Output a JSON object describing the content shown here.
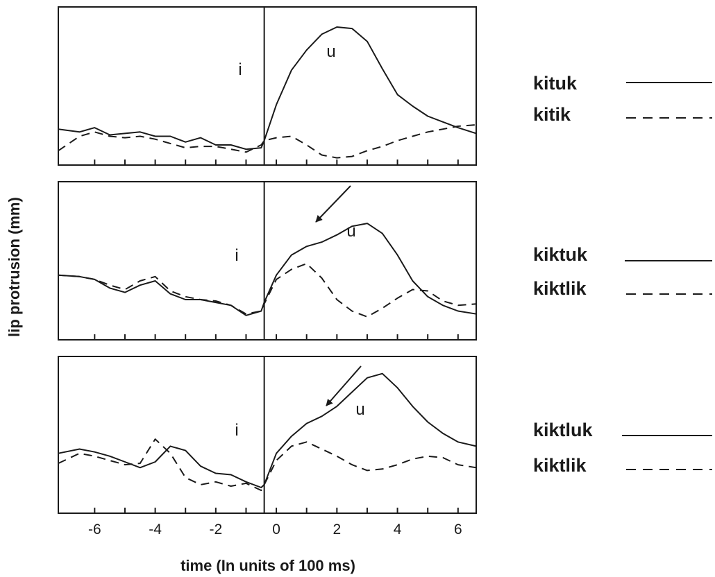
{
  "chart_data": {
    "type": "line",
    "xlabel": "time  (In units of 100 ms)",
    "ylabel": "lip protrusion (mm)",
    "xlim": [
      -7.2,
      6.6
    ],
    "x_ticks": [
      -6,
      -4,
      -2,
      0,
      2,
      4,
      6
    ],
    "x_tick_labels": [
      "-6",
      "-4",
      "-2",
      "0",
      "2",
      "4",
      "6"
    ],
    "x_minor_ticks": [
      -5,
      -3,
      -1,
      1,
      3,
      5
    ],
    "vertical_line_x": -0.4,
    "grid": false,
    "legend_placement": "right of each panel",
    "line_color": "#1a1a1a",
    "panels": [
      {
        "annotations": [
          "i",
          "u"
        ],
        "arrow": false,
        "series": [
          {
            "name": "kituk",
            "style": "solid",
            "x": [
              -7.2,
              -6.5,
              -6,
              -5.5,
              -5,
              -4.5,
              -4,
              -3.5,
              -3,
              -2.5,
              -2,
              -1.5,
              -1,
              -0.5,
              -0.4,
              0,
              0.5,
              1,
              1.5,
              2,
              2.5,
              3,
              3.5,
              4,
              4.5,
              5,
              5.5,
              6,
              6.6
            ],
            "y": [
              2.5,
              2.3,
              2.6,
              2.1,
              2.2,
              2.3,
              2.0,
              2.0,
              1.6,
              1.9,
              1.4,
              1.4,
              1.1,
              1.2,
              1.7,
              4.2,
              6.6,
              8.0,
              9.1,
              9.6,
              9.5,
              8.6,
              6.7,
              4.9,
              4.1,
              3.4,
              3.0,
              2.6,
              2.2
            ]
          },
          {
            "name": "kitik",
            "style": "dashed",
            "x": [
              -7.2,
              -6.5,
              -6,
              -5.5,
              -5,
              -4.5,
              -4,
              -3.5,
              -3,
              -2.5,
              -2,
              -1.5,
              -1,
              -0.5,
              -0.4,
              0,
              0.5,
              1,
              1.5,
              2,
              2.5,
              3,
              3.5,
              4,
              4.5,
              5,
              5.5,
              6,
              6.6
            ],
            "y": [
              1.0,
              2.0,
              2.3,
              2.0,
              1.9,
              2.0,
              1.8,
              1.5,
              1.2,
              1.3,
              1.3,
              1.1,
              0.9,
              1.4,
              1.7,
              1.9,
              2.0,
              1.4,
              0.7,
              0.5,
              0.6,
              1.0,
              1.3,
              1.7,
              2.0,
              2.3,
              2.5,
              2.7,
              2.8
            ]
          }
        ]
      },
      {
        "annotations": [
          "i",
          "u"
        ],
        "arrow": true,
        "series": [
          {
            "name": "kiktuk",
            "style": "solid",
            "x": [
              -7.2,
              -6.5,
              -6,
              -5.5,
              -5,
              -4.5,
              -4,
              -3.5,
              -3,
              -2.5,
              -2,
              -1.5,
              -1,
              -0.5,
              -0.4,
              0,
              0.5,
              1,
              1.5,
              2,
              2.5,
              3,
              3.5,
              4,
              4.5,
              5,
              5.5,
              6,
              6.6
            ],
            "y": [
              4.5,
              4.4,
              4.2,
              3.6,
              3.3,
              3.8,
              4.1,
              3.2,
              2.8,
              2.8,
              2.6,
              2.4,
              1.7,
              2.0,
              2.6,
              4.5,
              5.9,
              6.5,
              6.8,
              7.3,
              7.9,
              8.1,
              7.4,
              5.9,
              4.1,
              3.0,
              2.4,
              2.0,
              1.8
            ]
          },
          {
            "name": "kiktlik",
            "style": "dashed",
            "x": [
              -7.2,
              -6.5,
              -6,
              -5.5,
              -5,
              -4.5,
              -4,
              -3.5,
              -3,
              -2.5,
              -2,
              -1.5,
              -1,
              -0.5,
              -0.4,
              0,
              0.5,
              1,
              1.5,
              2,
              2.5,
              3,
              3.5,
              4,
              4.5,
              5,
              5.5,
              6,
              6.6
            ],
            "y": [
              4.5,
              4.4,
              4.2,
              3.8,
              3.5,
              4.1,
              4.4,
              3.4,
              3.0,
              2.8,
              2.7,
              2.4,
              1.8,
              2.0,
              2.5,
              4.2,
              4.9,
              5.3,
              4.3,
              2.8,
              2.0,
              1.6,
              2.2,
              2.9,
              3.5,
              3.4,
              2.7,
              2.4,
              2.5
            ]
          }
        ]
      },
      {
        "annotations": [
          "i",
          "u"
        ],
        "arrow": true,
        "series": [
          {
            "name": "kiktluk",
            "style": "solid",
            "x": [
              -7.2,
              -6.5,
              -6,
              -5.5,
              -5,
              -4.5,
              -4,
              -3.5,
              -3,
              -2.5,
              -2,
              -1.5,
              -1,
              -0.5,
              -0.4,
              0,
              0.5,
              1,
              1.5,
              2,
              2.5,
              3,
              3.5,
              4,
              4.5,
              5,
              5.5,
              6,
              6.6
            ],
            "y": [
              4.2,
              4.5,
              4.3,
              4.0,
              3.6,
              3.2,
              3.6,
              4.7,
              4.4,
              3.3,
              2.8,
              2.7,
              2.2,
              1.8,
              2.0,
              4.2,
              5.4,
              6.3,
              6.8,
              7.5,
              8.5,
              9.5,
              9.8,
              8.8,
              7.5,
              6.4,
              5.6,
              5.0,
              4.7
            ]
          },
          {
            "name": "kiktlik",
            "style": "dashed",
            "x": [
              -7.2,
              -6.5,
              -6,
              -5.5,
              -5,
              -4.5,
              -4,
              -3.5,
              -3,
              -2.5,
              -2,
              -1.5,
              -1,
              -0.5,
              -0.4,
              0,
              0.5,
              1,
              1.5,
              2,
              2.5,
              3,
              3.5,
              4,
              4.5,
              5,
              5.5,
              6,
              6.6
            ],
            "y": [
              3.5,
              4.2,
              4.0,
              3.7,
              3.4,
              3.5,
              5.2,
              4.2,
              2.5,
              2.0,
              2.2,
              1.9,
              2.1,
              1.6,
              2.0,
              3.7,
              4.7,
              5.0,
              4.5,
              4.0,
              3.4,
              3.0,
              3.1,
              3.4,
              3.8,
              4.0,
              3.9,
              3.4,
              3.2
            ]
          }
        ]
      }
    ]
  }
}
